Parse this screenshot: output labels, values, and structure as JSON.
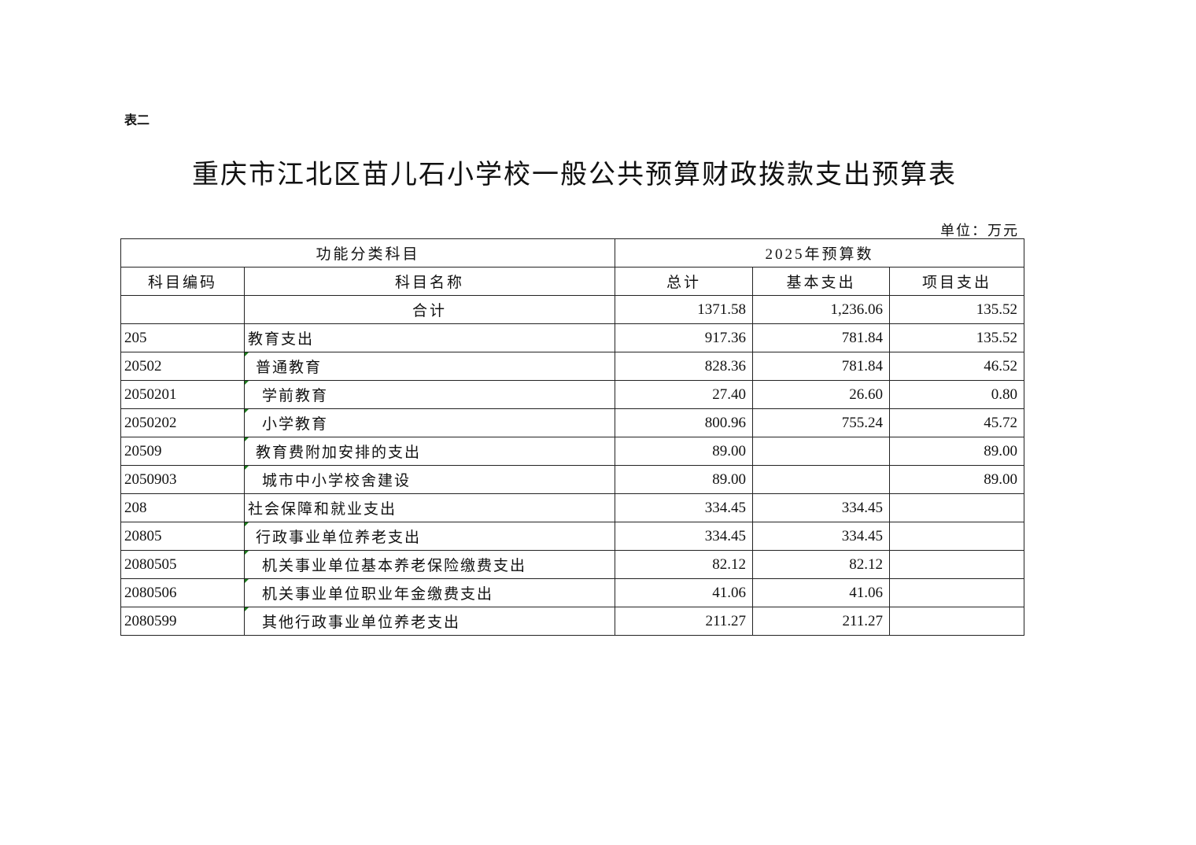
{
  "doc": {
    "table_label": "表二",
    "title": "重庆市江北区苗儿石小学校一般公共预算财政拨款支出预算表",
    "unit": "单位：万元"
  },
  "table": {
    "group_headers": [
      "功能分类科目",
      "2025年预算数"
    ],
    "headers": [
      "科目编码",
      "科目名称",
      "总计",
      "基本支出",
      "项目支出"
    ],
    "total": {
      "name": "合计",
      "total": "1371.58",
      "basic": "1,236.06",
      "project": "135.52"
    },
    "rows": [
      {
        "code": "205",
        "name": "教育支出",
        "level": 0,
        "total": "917.36",
        "basic": "781.84",
        "project": "135.52"
      },
      {
        "code": "20502",
        "name": "普通教育",
        "level": 1,
        "total": "828.36",
        "basic": "781.84",
        "project": "46.52"
      },
      {
        "code": "2050201",
        "name": "学前教育",
        "level": 2,
        "total": "27.40",
        "basic": "26.60",
        "project": "0.80"
      },
      {
        "code": "2050202",
        "name": "小学教育",
        "level": 2,
        "total": "800.96",
        "basic": "755.24",
        "project": "45.72"
      },
      {
        "code": "20509",
        "name": "教育费附加安排的支出",
        "level": 1,
        "total": "89.00",
        "basic": "",
        "project": "89.00"
      },
      {
        "code": "2050903",
        "name": "城市中小学校舍建设",
        "level": 2,
        "total": "89.00",
        "basic": "",
        "project": "89.00"
      },
      {
        "code": "208",
        "name": "社会保障和就业支出",
        "level": 0,
        "total": "334.45",
        "basic": "334.45",
        "project": ""
      },
      {
        "code": "20805",
        "name": "行政事业单位养老支出",
        "level": 1,
        "total": "334.45",
        "basic": "334.45",
        "project": ""
      },
      {
        "code": "2080505",
        "name": "机关事业单位基本养老保险缴费支出",
        "level": 2,
        "total": "82.12",
        "basic": "82.12",
        "project": ""
      },
      {
        "code": "2080506",
        "name": "机关事业单位职业年金缴费支出",
        "level": 2,
        "total": "41.06",
        "basic": "41.06",
        "project": ""
      },
      {
        "code": "2080599",
        "name": "其他行政事业单位养老支出",
        "level": 2,
        "total": "211.27",
        "basic": "211.27",
        "project": ""
      }
    ]
  }
}
